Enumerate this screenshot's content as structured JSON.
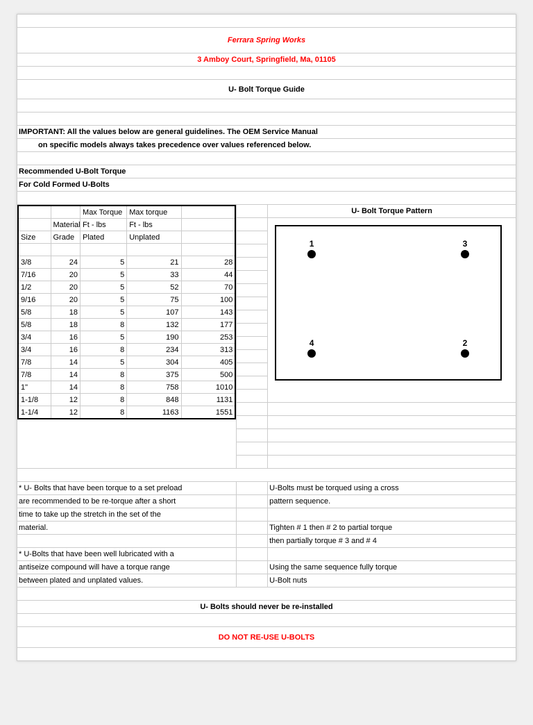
{
  "company": "Ferrara Spring Works",
  "address": "3 Amboy Court, Springfield, Ma, 01105",
  "guide_title": "U- Bolt Torque Guide",
  "important_line1": "IMPORTANT:  All the values below are general guidelines. The OEM Service Manual",
  "important_line2": "on specific models always takes precedence over values referenced below.",
  "rec_line1": "Recommended U-Bolt Torque",
  "rec_line2": "For Cold Formed U-Bolts",
  "headers": {
    "size": "Size",
    "grade": "Material Grade",
    "plated_top": "Max Torque",
    "plated_bot": "Ft - lbs Plated",
    "unplated_top": "Max torque",
    "unplated_bot": "Ft - lbs Unplated"
  },
  "pattern_title": "U- Bolt Torque Pattern",
  "rows": [
    {
      "s": "3/8",
      "t": "24",
      "g": "5",
      "p": "21",
      "u": "28"
    },
    {
      "s": "7/16",
      "t": "20",
      "g": "5",
      "p": "33",
      "u": "44"
    },
    {
      "s": "1/2",
      "t": "20",
      "g": "5",
      "p": "52",
      "u": "70"
    },
    {
      "s": "9/16",
      "t": "20",
      "g": "5",
      "p": "75",
      "u": "100"
    },
    {
      "s": "5/8",
      "t": "18",
      "g": "5",
      "p": "107",
      "u": "143"
    },
    {
      "s": "5/8",
      "t": "18",
      "g": "8",
      "p": "132",
      "u": "177"
    },
    {
      "s": "3/4",
      "t": "16",
      "g": "5",
      "p": "190",
      "u": "253"
    },
    {
      "s": "3/4",
      "t": "16",
      "g": "8",
      "p": "234",
      "u": "313"
    },
    {
      "s": "7/8",
      "t": "14",
      "g": "5",
      "p": "304",
      "u": "405"
    },
    {
      "s": "7/8",
      "t": "14",
      "g": "8",
      "p": "375",
      "u": "500"
    },
    {
      "s": "1\"",
      "t": "14",
      "g": "8",
      "p": "758",
      "u": "1010"
    },
    {
      "s": "1-1/8",
      "t": "12",
      "g": "8",
      "p": "848",
      "u": "1131"
    },
    {
      "s": "1-1/4",
      "t": "12",
      "g": "8",
      "p": "1163",
      "u": "1551"
    }
  ],
  "dots": {
    "d1": "1",
    "d2": "2",
    "d3": "3",
    "d4": "4"
  },
  "note_left_1": "* U- Bolts that have been torque to a set preload",
  "note_left_2": "are recommended to be re-torque after a short",
  "note_left_3": "time to take up the stretch in the set of the",
  "note_left_4": "material.",
  "note_left_5": "* U-Bolts that have been well lubricated with a",
  "note_left_6": "antiseize compound will have a torque range",
  "note_left_7": "between plated and unplated values.",
  "note_right_1": "U-Bolts must be torqued using a cross",
  "note_right_2": "pattern sequence.",
  "note_right_3": "Tighten # 1 then # 2 to partial torque",
  "note_right_4": "then partially torque # 3 and # 4",
  "note_right_5": "Using the same sequence fully torque",
  "note_right_6": "U-Bolt nuts",
  "footer1": "U- Bolts should never be re-installed",
  "footer2": "DO NOT RE-USE U-BOLTS"
}
